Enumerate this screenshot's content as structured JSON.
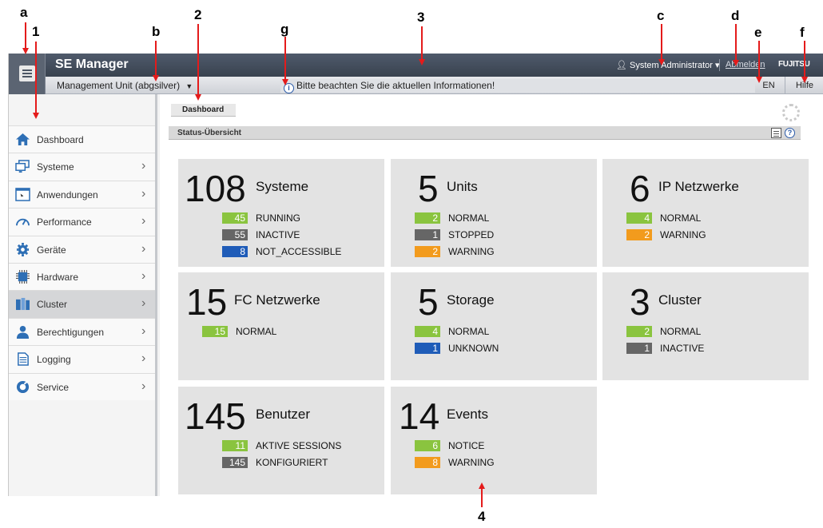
{
  "annotations": {
    "a": "a",
    "b": "b",
    "c": "c",
    "d": "d",
    "e": "e",
    "f": "f",
    "g": "g",
    "n1": "1",
    "n2": "2",
    "n3": "3",
    "n4": "4"
  },
  "header": {
    "title": "SE Manager",
    "user": "System Administrator",
    "logout": "Abmelden",
    "brand": "FUJITSU",
    "unit": "Management Unit (abgsilver)",
    "info": "Bitte beachten Sie die aktuellen Informationen!",
    "lang": "EN",
    "help": "Hilfe"
  },
  "sidebar": {
    "items": [
      {
        "label": "Dashboard",
        "icon": "home-icon"
      },
      {
        "label": "Systeme",
        "icon": "monitor-icon"
      },
      {
        "label": "Anwendungen",
        "icon": "window-icon"
      },
      {
        "label": "Performance",
        "icon": "gauge-icon"
      },
      {
        "label": "Geräte",
        "icon": "gear-icon"
      },
      {
        "label": "Hardware",
        "icon": "chip-icon"
      },
      {
        "label": "Cluster",
        "icon": "cluster-icon"
      },
      {
        "label": "Berechtigungen",
        "icon": "user-icon"
      },
      {
        "label": "Logging",
        "icon": "document-icon"
      },
      {
        "label": "Service",
        "icon": "service-icon"
      }
    ]
  },
  "main": {
    "breadcrumb": "Dashboard",
    "section_title": "Status-Übersicht",
    "tiles": [
      {
        "count": "108",
        "name": "Systeme",
        "rows": [
          {
            "n": "45",
            "label": "RUNNING",
            "color": "#8ac43f"
          },
          {
            "n": "55",
            "label": "INACTIVE",
            "color": "#666666"
          },
          {
            "n": "8",
            "label": "NOT_ACCESSIBLE",
            "color": "#1f5cb8"
          }
        ]
      },
      {
        "count": "5",
        "name": "Units",
        "rows": [
          {
            "n": "2",
            "label": "NORMAL",
            "color": "#8ac43f"
          },
          {
            "n": "1",
            "label": "STOPPED",
            "color": "#666666"
          },
          {
            "n": "2",
            "label": "WARNING",
            "color": "#f29b1d"
          }
        ]
      },
      {
        "count": "6",
        "name": "IP Netzwerke",
        "rows": [
          {
            "n": "4",
            "label": "NORMAL",
            "color": "#8ac43f"
          },
          {
            "n": "2",
            "label": "WARNING",
            "color": "#f29b1d"
          }
        ]
      },
      {
        "count": "15",
        "name": "FC Netzwerke",
        "rows": [
          {
            "n": "15",
            "label": "NORMAL",
            "color": "#8ac43f"
          }
        ]
      },
      {
        "count": "5",
        "name": "Storage",
        "rows": [
          {
            "n": "4",
            "label": "NORMAL",
            "color": "#8ac43f"
          },
          {
            "n": "1",
            "label": "UNKNOWN",
            "color": "#1f5cb8"
          }
        ]
      },
      {
        "count": "3",
        "name": "Cluster",
        "rows": [
          {
            "n": "2",
            "label": "NORMAL",
            "color": "#8ac43f"
          },
          {
            "n": "1",
            "label": "INACTIVE",
            "color": "#666666"
          }
        ]
      },
      {
        "count": "145",
        "name": "Benutzer",
        "rows": [
          {
            "n": "11",
            "label": "AKTIVE SESSIONS",
            "color": "#8ac43f"
          },
          {
            "n": "145",
            "label": "KONFIGURIERT",
            "color": "#666666"
          }
        ]
      },
      {
        "count": "14",
        "name": "Events",
        "rows": [
          {
            "n": "6",
            "label": "NOTICE",
            "color": "#8ac43f"
          },
          {
            "n": "8",
            "label": "WARNING",
            "color": "#f29b1d"
          }
        ]
      }
    ]
  }
}
